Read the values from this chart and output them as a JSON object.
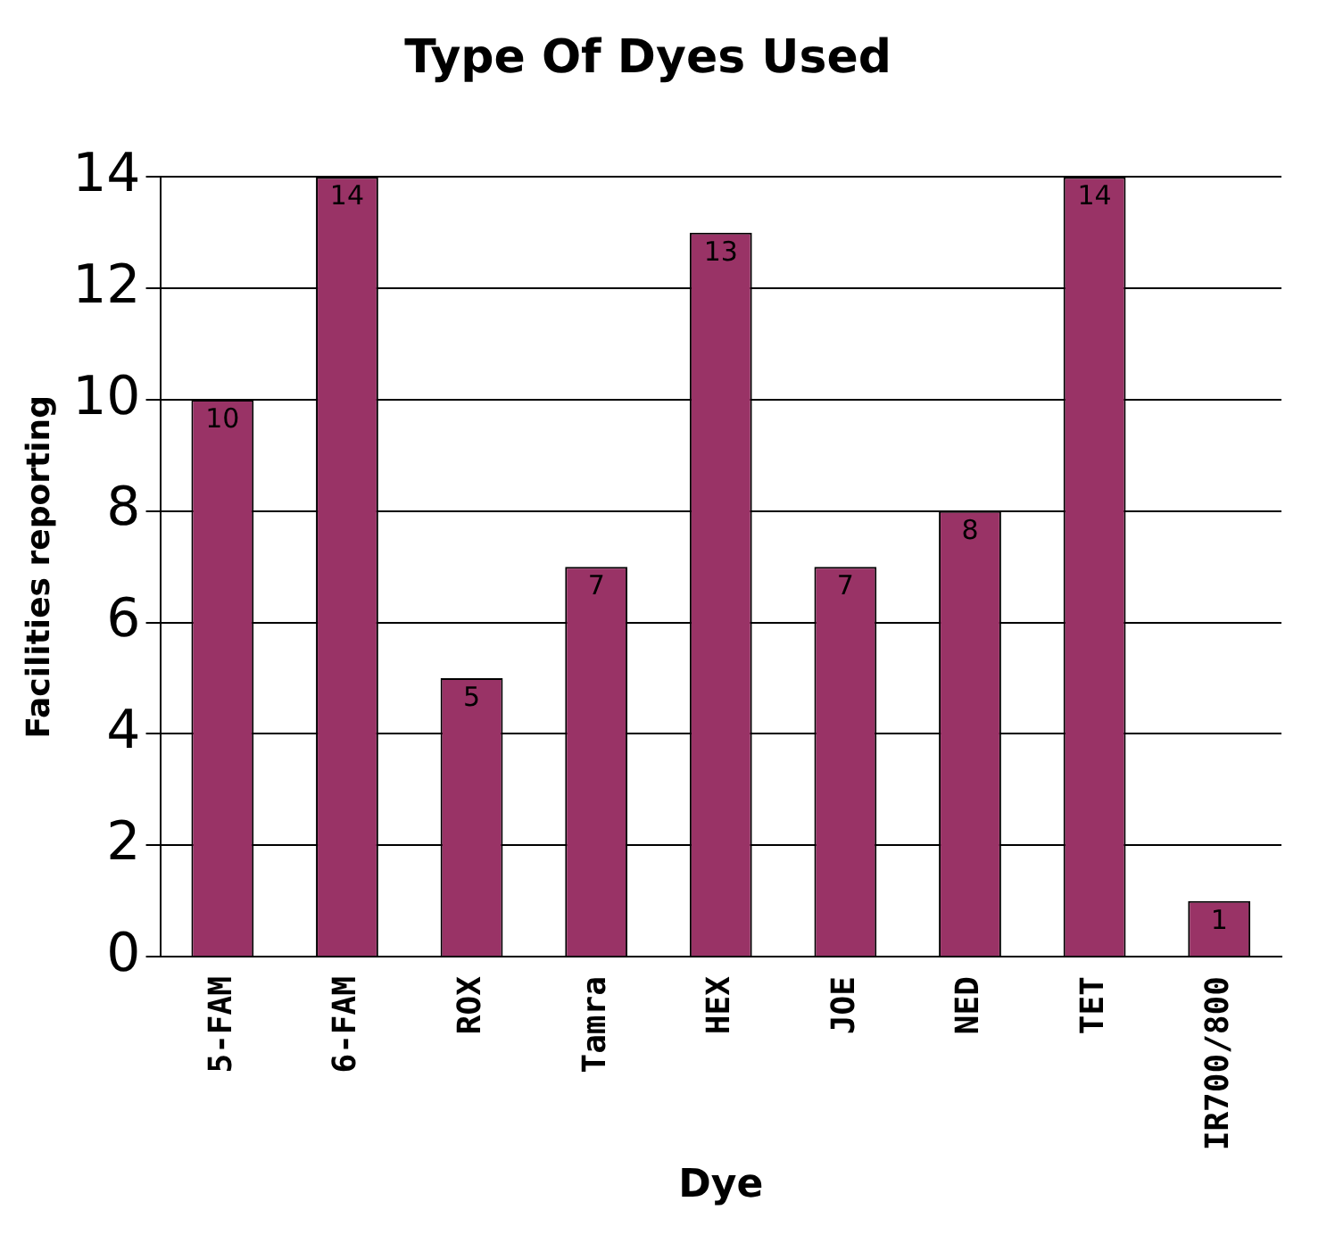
{
  "chart_data": {
    "type": "bar",
    "title": "Type Of Dyes Used",
    "xlabel": "Dye",
    "ylabel": "Facilities reporting",
    "categories": [
      "5-FAM",
      "6-FAM",
      "ROX",
      "Tamra",
      "HEX",
      "JOE",
      "NED",
      "TET",
      "IR700/800"
    ],
    "values": [
      10,
      14,
      5,
      7,
      13,
      7,
      8,
      14,
      1
    ],
    "color": "#993366",
    "ylim": [
      0,
      14
    ],
    "yticks": [
      0,
      2,
      4,
      6,
      8,
      10,
      12,
      14
    ],
    "grid": "y",
    "data_labels": true,
    "legend": false
  }
}
